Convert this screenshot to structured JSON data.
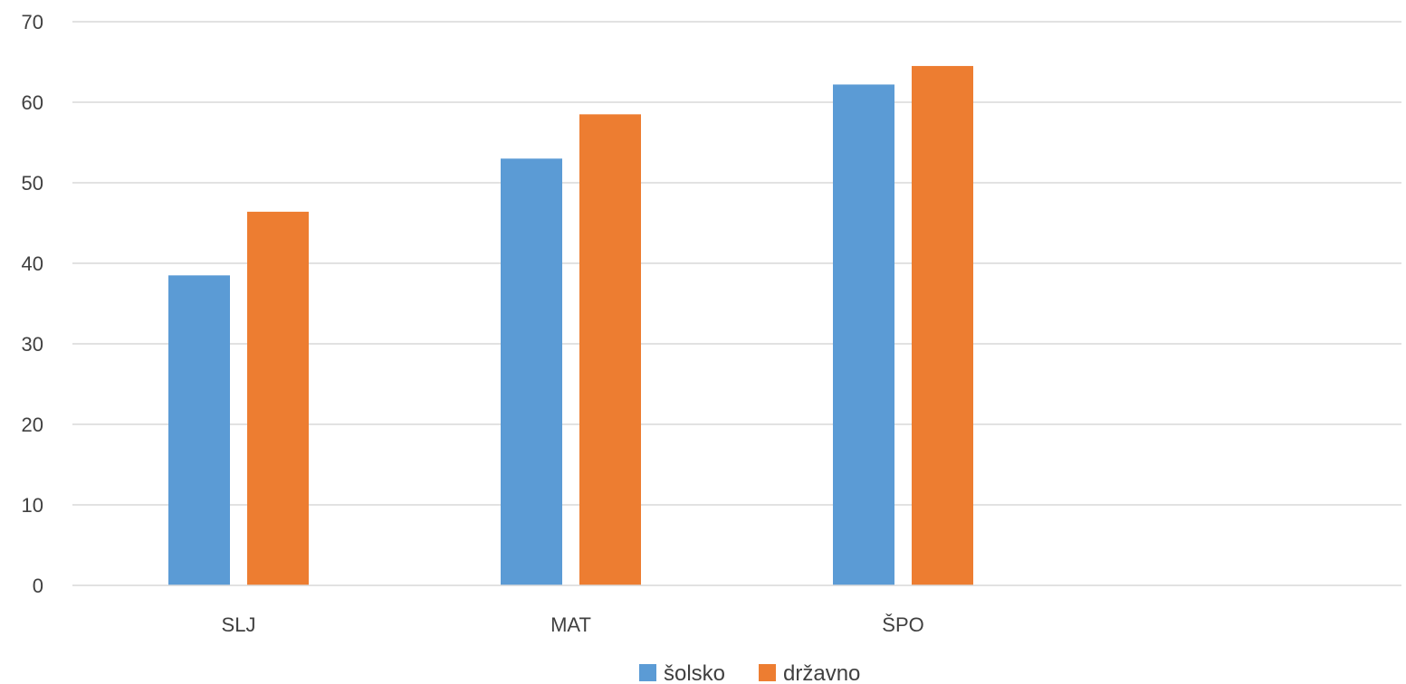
{
  "chart_data": {
    "type": "bar",
    "categories": [
      "SLJ",
      "MAT",
      "ŠPO"
    ],
    "series": [
      {
        "name": "šolsko",
        "values": [
          38.5,
          53,
          62.2
        ],
        "color": "#5b9bd5"
      },
      {
        "name": "državno",
        "values": [
          46.4,
          58.5,
          64.5
        ],
        "color": "#ed7d31"
      }
    ],
    "yticks": [
      "0",
      "10",
      "20",
      "30",
      "40",
      "50",
      "60",
      "70"
    ],
    "ylim": [
      0,
      70
    ],
    "grid": true,
    "legend_position": "bottom"
  }
}
